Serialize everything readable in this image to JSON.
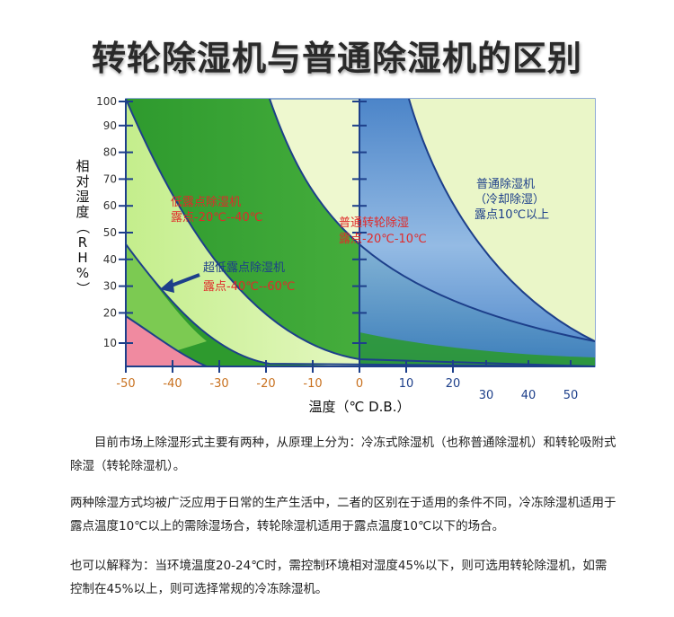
{
  "title": "转轮除湿机与普通除湿机的区别",
  "chart_data": {
    "type": "area",
    "ylabel": "相对湿度（RH%）",
    "xlabel": "温度（℃ D.B.）",
    "ylim": [
      0,
      100
    ],
    "y_ticks": [
      "100",
      "90",
      "80",
      "70",
      "60",
      "50",
      "40",
      "30",
      "20",
      "10"
    ],
    "x_ticks_row1": [
      "-50",
      "-40",
      "-30",
      "-20",
      "-10",
      "0",
      "10",
      "20"
    ],
    "x_ticks_row2": [
      "30",
      "40",
      "50"
    ],
    "regions": [
      {
        "label_lines": [
          "超低露点除湿机",
          "露点-40℃--60℃"
        ],
        "color": "#f08aa0"
      },
      {
        "label_lines": [
          "低露点除湿机",
          "露点-20℃--40℃"
        ],
        "color": "#b8e87a"
      },
      {
        "label_lines": [
          "普通转轮除湿",
          "露点-20℃-10℃"
        ],
        "color": "#2a9a2a"
      },
      {
        "label_lines": [
          "普通除湿机",
          "（冷却除湿）",
          "露点10℃以上"
        ],
        "color": "#eaf6c8"
      }
    ]
  },
  "paragraphs": [
    "目前市场上除湿形式主要有两种，从原理上分为：冷冻式除湿机（也称普通除湿机）和转轮吸附式除湿（转轮除湿机）。",
    "两种除湿方式均被广泛应用于日常的生产生活中，二者的区别在于适用的条件不同，冷冻除湿机适用于露点温度10℃以上的需除湿场合，转轮除湿机适用于露点温度10℃以下的场合。",
    "也可以解释为：当环境温度20-24℃时，需控制环境相对湿度45%以下，则可选用转轮除湿机，如需控制在45%以上，则可选择常规的冷冻除湿机。"
  ]
}
